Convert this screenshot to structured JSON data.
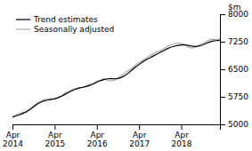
{
  "chart_data": {
    "type": "line",
    "y_label": "$m",
    "categories": [
      "Apr\n2014",
      null,
      null,
      null,
      null,
      null,
      null,
      null,
      null,
      null,
      null,
      null,
      "Apr\n2015",
      null,
      null,
      null,
      null,
      null,
      null,
      null,
      null,
      null,
      null,
      null,
      "Apr\n2016",
      null,
      null,
      null,
      null,
      null,
      null,
      null,
      null,
      null,
      null,
      null,
      "Apr\n2017",
      null,
      null,
      null,
      null,
      null,
      null,
      null,
      null,
      null,
      null,
      null,
      "Apr\n2018",
      null,
      null,
      null,
      null,
      null,
      null,
      null,
      null,
      null,
      null,
      null
    ],
    "series": [
      {
        "name": "Trend estimates",
        "color": "#000000",
        "values": [
          5200,
          5230,
          5260,
          5300,
          5350,
          5410,
          5480,
          5550,
          5600,
          5640,
          5660,
          5680,
          5700,
          5730,
          5770,
          5820,
          5870,
          5920,
          5960,
          5990,
          6010,
          6030,
          6060,
          6100,
          6150,
          6190,
          6220,
          6240,
          6250,
          6240,
          6250,
          6280,
          6330,
          6400,
          6480,
          6560,
          6630,
          6700,
          6760,
          6810,
          6860,
          6910,
          6960,
          7010,
          7060,
          7100,
          7130,
          7150,
          7160,
          7160,
          7150,
          7130,
          7120,
          7130,
          7160,
          7200,
          7240,
          7270,
          7280,
          7290
        ]
      },
      {
        "name": "Seasonally adjusted",
        "color": "#aaaaaa",
        "values": [
          5190,
          5260,
          5300,
          5330,
          5320,
          5400,
          5500,
          5580,
          5630,
          5680,
          5690,
          5700,
          5680,
          5720,
          5780,
          5860,
          5900,
          5950,
          5970,
          6010,
          6000,
          6050,
          6100,
          6120,
          6180,
          6200,
          6250,
          6200,
          6180,
          6200,
          6270,
          6330,
          6400,
          6470,
          6530,
          6610,
          6680,
          6740,
          6800,
          6870,
          6920,
          6980,
          7000,
          7060,
          7120,
          7160,
          7200,
          7220,
          7200,
          7180,
          7100,
          7080,
          7100,
          7150,
          7200,
          7250,
          7300,
          7320,
          7310,
          7320
        ]
      }
    ],
    "ylim": [
      5000,
      8000
    ],
    "yticks": [
      5000,
      5750,
      6500,
      7250,
      8000
    ],
    "legend": "upper left",
    "grid": false
  }
}
